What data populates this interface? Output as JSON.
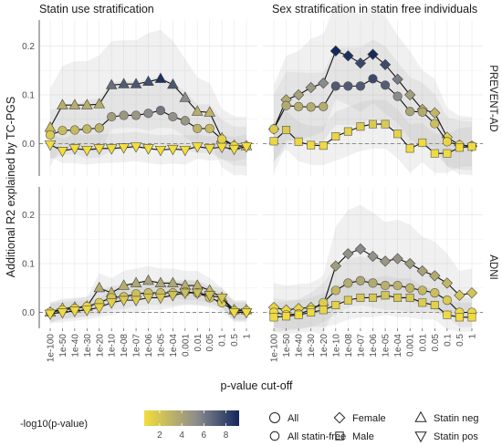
{
  "figure": {
    "y_axis_label": "Additional R2 explained by TC-PGS",
    "x_axis_label": "p-value cut-off",
    "col_titles": [
      "Statin use stratification",
      "Sex stratification in statin free individuals"
    ],
    "row_labels": [
      "PREVENT-AD",
      "ADNI"
    ],
    "x_ticks": [
      "1e-100",
      "1e-50",
      "1e-40",
      "1e-30",
      "1e-20",
      "1e-10",
      "1e-08",
      "1e-07",
      "1e-06",
      "1e-05",
      "1e-04",
      "0.001",
      "0.01",
      "0.05",
      "0.1",
      "0.5",
      "1"
    ],
    "y_ticks": [
      "0.0",
      "0.1",
      "0.2"
    ]
  },
  "legend": {
    "colorbar_title": "-log10(p-value)",
    "colorbar_ticks": [
      "2",
      "4",
      "6",
      "8"
    ],
    "color_low": "#f2dd3c",
    "color_mid": "#8d8d8d",
    "color_high": "#12275c",
    "shapes": [
      {
        "label": "All",
        "shape": "circle-large"
      },
      {
        "label": "Female",
        "shape": "diamond"
      },
      {
        "label": "Statin neg",
        "shape": "triangle-up"
      },
      {
        "label": "All statin-free",
        "shape": "circle"
      },
      {
        "label": "Male",
        "shape": "square"
      },
      {
        "label": "Statin pos",
        "shape": "triangle-down"
      }
    ]
  },
  "chart_data": [
    {
      "type": "line",
      "panel": "Statin use stratification / PREVENT-AD",
      "x": [
        "1e-100",
        "1e-50",
        "1e-40",
        "1e-30",
        "1e-20",
        "1e-10",
        "1e-08",
        "1e-07",
        "1e-06",
        "1e-05",
        "1e-04",
        "0.001",
        "0.01",
        "0.05",
        "0.1",
        "0.5",
        "1"
      ],
      "ylim": [
        -0.035,
        0.25
      ],
      "series": [
        {
          "name": "Statin neg",
          "shape": "triangle-up",
          "values": [
            0.033,
            0.079,
            0.079,
            0.079,
            0.081,
            0.12,
            0.122,
            0.122,
            0.127,
            0.133,
            0.121,
            0.094,
            0.066,
            0.064,
            0.011,
            -0.004,
            -0.005
          ],
          "p": [
            2.6,
            3.4,
            3.4,
            3.4,
            3.6,
            6.2,
            6.8,
            6.9,
            7.2,
            8.2,
            6.9,
            5.2,
            3.5,
            3.1,
            1.3,
            1.1,
            1.1
          ],
          "band": [
            0.08,
            0.08,
            0.09,
            0.09,
            0.1,
            0.09,
            0.09,
            0.09,
            0.1,
            0.1,
            0.09,
            0.08,
            0.07,
            0.06,
            0.06,
            0.06,
            0.06
          ]
        },
        {
          "name": "All statin-free",
          "shape": "circle",
          "values": [
            0.018,
            0.027,
            0.028,
            0.03,
            0.032,
            0.055,
            0.058,
            0.058,
            0.062,
            0.068,
            0.055,
            0.047,
            0.031,
            0.031,
            0.009,
            -0.005,
            -0.005
          ],
          "p": [
            2.0,
            2.8,
            2.8,
            3.0,
            3.2,
            4.3,
            4.6,
            4.6,
            5.2,
            5.9,
            4.9,
            4.6,
            3.2,
            2.8,
            1.6,
            1.2,
            1.2
          ],
          "band": [
            0.05,
            0.05,
            0.05,
            0.06,
            0.06,
            0.07,
            0.07,
            0.07,
            0.07,
            0.07,
            0.07,
            0.06,
            0.05,
            0.05,
            0.04,
            0.04,
            0.04
          ]
        },
        {
          "name": "Statin pos",
          "shape": "triangle-down",
          "values": [
            -0.002,
            -0.015,
            -0.01,
            -0.013,
            -0.01,
            -0.01,
            -0.008,
            -0.006,
            -0.01,
            -0.013,
            -0.011,
            -0.013,
            -0.006,
            -0.01,
            -0.007,
            -0.011,
            -0.006
          ],
          "p": [
            1.0,
            1.0,
            1.0,
            1.0,
            1.0,
            1.0,
            1.0,
            1.0,
            1.0,
            1.0,
            1.0,
            1.0,
            1.0,
            1.0,
            1.0,
            1.0,
            1.0
          ],
          "band": [
            0.025,
            0.025,
            0.03,
            0.03,
            0.03,
            0.03,
            0.03,
            0.03,
            0.03,
            0.03,
            0.03,
            0.03,
            0.025,
            0.025,
            0.025,
            0.025,
            0.025
          ]
        }
      ]
    },
    {
      "type": "line",
      "panel": "Sex stratification in statin free individuals / PREVENT-AD",
      "x": [
        "1e-100",
        "1e-50",
        "1e-40",
        "1e-30",
        "1e-20",
        "1e-10",
        "1e-08",
        "1e-07",
        "1e-06",
        "1e-05",
        "1e-04",
        "0.001",
        "0.01",
        "0.05",
        "0.1",
        "0.5",
        "1"
      ],
      "ylim": [
        -0.035,
        0.25
      ],
      "series": [
        {
          "name": "Female",
          "shape": "diamond",
          "values": [
            0.03,
            0.09,
            0.1,
            0.115,
            0.124,
            0.19,
            0.18,
            0.165,
            0.183,
            0.162,
            0.132,
            0.1,
            0.07,
            0.063,
            0.013,
            -0.003,
            -0.005
          ],
          "p": [
            2.0,
            3.6,
            4.1,
            4.6,
            5.2,
            8.8,
            8.2,
            7.4,
            8.4,
            7.3,
            5.7,
            4.2,
            3.4,
            3.0,
            1.6,
            1.2,
            1.2
          ],
          "band": [
            0.09,
            0.09,
            0.09,
            0.1,
            0.1,
            0.1,
            0.1,
            0.1,
            0.1,
            0.1,
            0.09,
            0.09,
            0.08,
            0.07,
            0.06,
            0.06,
            0.06
          ]
        },
        {
          "name": "All statin-free",
          "shape": "circle",
          "values": [
            0.03,
            0.078,
            0.076,
            0.075,
            0.076,
            0.118,
            0.118,
            0.118,
            0.133,
            0.12,
            0.097,
            0.066,
            0.065,
            0.041,
            0.004,
            -0.003,
            -0.005
          ],
          "p": [
            1.9,
            3.6,
            3.5,
            3.5,
            3.5,
            6.8,
            6.8,
            6.8,
            7.4,
            6.7,
            5.2,
            3.9,
            3.6,
            2.6,
            1.4,
            1.2,
            1.2
          ],
          "band": [
            0.07,
            0.07,
            0.07,
            0.07,
            0.07,
            0.08,
            0.08,
            0.08,
            0.08,
            0.08,
            0.07,
            0.07,
            0.06,
            0.06,
            0.05,
            0.05,
            0.05
          ]
        },
        {
          "name": "Male",
          "shape": "square",
          "values": [
            0.005,
            0.028,
            0.004,
            -0.003,
            -0.004,
            0.015,
            0.025,
            0.035,
            0.04,
            0.04,
            0.02,
            -0.01,
            0.002,
            -0.02,
            -0.02,
            -0.008,
            -0.006
          ],
          "p": [
            1.3,
            2.0,
            1.3,
            1.1,
            1.1,
            1.4,
            1.6,
            1.8,
            2.0,
            2.0,
            1.5,
            1.1,
            1.1,
            1.1,
            1.1,
            1.1,
            1.1
          ],
          "band": [
            0.04,
            0.04,
            0.04,
            0.04,
            0.04,
            0.05,
            0.05,
            0.05,
            0.05,
            0.05,
            0.05,
            0.05,
            0.04,
            0.04,
            0.04,
            0.04,
            0.04
          ]
        }
      ]
    },
    {
      "type": "line",
      "panel": "Statin use stratification / ADNI",
      "x": [
        "1e-100",
        "1e-50",
        "1e-40",
        "1e-30",
        "1e-20",
        "1e-10",
        "1e-08",
        "1e-07",
        "1e-06",
        "1e-05",
        "1e-04",
        "0.001",
        "0.01",
        "0.05",
        "0.1",
        "0.5",
        "1"
      ],
      "ylim": [
        -0.035,
        0.25
      ],
      "series": [
        {
          "name": "Statin neg",
          "shape": "triangle-up",
          "values": [
            0.0,
            0.008,
            0.01,
            0.012,
            0.05,
            0.04,
            0.055,
            0.06,
            0.065,
            0.06,
            0.06,
            0.055,
            0.055,
            0.045,
            0.03,
            0.005,
            0.005
          ],
          "p": [
            1.2,
            1.5,
            1.5,
            1.7,
            3.6,
            2.9,
            3.4,
            3.8,
            4.0,
            3.8,
            3.8,
            3.4,
            3.3,
            2.8,
            2.0,
            1.3,
            1.3
          ],
          "band": [
            0.02,
            0.02,
            0.02,
            0.02,
            0.03,
            0.03,
            0.03,
            0.03,
            0.03,
            0.03,
            0.03,
            0.03,
            0.03,
            0.025,
            0.02,
            0.02,
            0.02
          ]
        },
        {
          "name": "All statin-free",
          "shape": "circle",
          "values": [
            0.0,
            0.005,
            0.008,
            0.012,
            0.02,
            0.03,
            0.032,
            0.038,
            0.04,
            0.04,
            0.04,
            0.042,
            0.04,
            0.03,
            0.02,
            0.003,
            0.003
          ],
          "p": [
            1.1,
            1.3,
            1.4,
            1.5,
            1.8,
            2.3,
            2.4,
            2.6,
            2.7,
            2.7,
            2.7,
            2.8,
            2.7,
            2.3,
            1.8,
            1.2,
            1.2
          ],
          "band": [
            0.02,
            0.02,
            0.02,
            0.02,
            0.025,
            0.025,
            0.025,
            0.025,
            0.025,
            0.025,
            0.025,
            0.025,
            0.025,
            0.02,
            0.02,
            0.02,
            0.02
          ]
        },
        {
          "name": "Statin pos",
          "shape": "triangle-down",
          "values": [
            -0.003,
            0.0,
            0.003,
            0.005,
            0.01,
            0.02,
            0.025,
            0.025,
            0.03,
            0.03,
            0.035,
            0.04,
            0.04,
            0.035,
            0.03,
            0.0,
            0.0
          ],
          "p": [
            1.0,
            1.1,
            1.2,
            1.3,
            1.4,
            1.7,
            2.0,
            2.0,
            2.2,
            2.2,
            2.4,
            2.6,
            2.6,
            2.4,
            2.2,
            1.1,
            1.1
          ],
          "band": [
            0.02,
            0.02,
            0.02,
            0.02,
            0.02,
            0.025,
            0.025,
            0.025,
            0.025,
            0.025,
            0.025,
            0.025,
            0.025,
            0.02,
            0.02,
            0.02,
            0.02
          ]
        }
      ]
    },
    {
      "type": "line",
      "panel": "Sex stratification in statin free individuals / ADNI",
      "x": [
        "1e-100",
        "1e-50",
        "1e-40",
        "1e-30",
        "1e-20",
        "1e-10",
        "1e-08",
        "1e-07",
        "1e-06",
        "1e-05",
        "1e-04",
        "0.001",
        "0.01",
        "0.05",
        "0.1",
        "0.5",
        "1"
      ],
      "ylim": [
        -0.035,
        0.25
      ],
      "series": [
        {
          "name": "Female",
          "shape": "diamond",
          "values": [
            0.01,
            0.005,
            0.008,
            0.01,
            0.015,
            0.095,
            0.12,
            0.13,
            0.115,
            0.105,
            0.11,
            0.1,
            0.085,
            0.075,
            0.06,
            0.035,
            0.04
          ],
          "p": [
            1.4,
            1.3,
            1.4,
            1.4,
            1.6,
            4.3,
            4.9,
            5.2,
            4.9,
            4.6,
            4.8,
            4.5,
            4.1,
            3.6,
            3.0,
            2.2,
            2.3
          ],
          "band": [
            0.05,
            0.05,
            0.05,
            0.05,
            0.06,
            0.08,
            0.09,
            0.09,
            0.09,
            0.08,
            0.08,
            0.08,
            0.07,
            0.07,
            0.06,
            0.05,
            0.05
          ]
        },
        {
          "name": "All statin-free",
          "shape": "circle",
          "values": [
            0.0,
            -0.005,
            -0.003,
            0.005,
            0.02,
            0.045,
            0.06,
            0.065,
            0.06,
            0.055,
            0.055,
            0.05,
            0.045,
            0.04,
            0.025,
            0.0,
            0.0
          ],
          "p": [
            1.1,
            1.2,
            1.2,
            1.3,
            1.8,
            2.9,
            3.5,
            3.8,
            3.6,
            3.3,
            3.3,
            3.1,
            2.9,
            2.6,
            2.0,
            1.2,
            1.2
          ],
          "band": [
            0.03,
            0.03,
            0.03,
            0.035,
            0.04,
            0.05,
            0.05,
            0.05,
            0.05,
            0.05,
            0.05,
            0.05,
            0.045,
            0.04,
            0.035,
            0.03,
            0.03
          ]
        },
        {
          "name": "Male",
          "shape": "square",
          "values": [
            -0.01,
            -0.008,
            -0.005,
            0.0,
            0.005,
            0.015,
            0.025,
            0.03,
            0.03,
            0.035,
            0.03,
            0.03,
            0.02,
            0.015,
            -0.005,
            -0.01,
            -0.01
          ],
          "p": [
            1.1,
            1.1,
            1.1,
            1.2,
            1.4,
            1.6,
            1.9,
            2.1,
            2.1,
            2.3,
            2.1,
            2.1,
            1.8,
            1.6,
            1.1,
            1.1,
            1.1
          ],
          "band": [
            0.03,
            0.03,
            0.03,
            0.03,
            0.035,
            0.04,
            0.04,
            0.04,
            0.04,
            0.04,
            0.04,
            0.04,
            0.035,
            0.03,
            0.03,
            0.03,
            0.03
          ]
        }
      ]
    }
  ]
}
